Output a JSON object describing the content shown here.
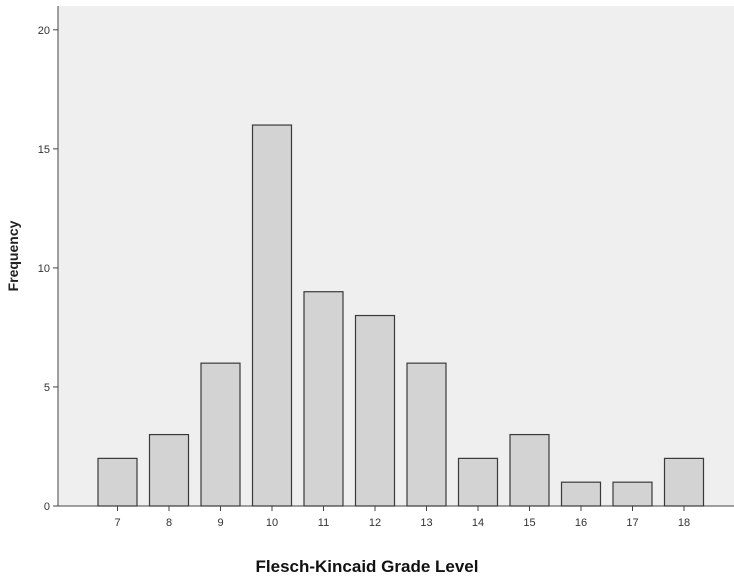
{
  "chart_data": {
    "type": "bar",
    "categories": [
      "7",
      "8",
      "9",
      "10",
      "11",
      "12",
      "13",
      "14",
      "15",
      "16",
      "17",
      "18"
    ],
    "values": [
      2,
      3,
      6,
      16,
      9,
      8,
      6,
      2,
      3,
      1,
      1,
      2
    ],
    "xlabel": "Flesch-Kincaid Grade Level",
    "ylabel": "Frequency",
    "ylim": [
      0,
      21
    ],
    "yticks": [
      0,
      5,
      10,
      15,
      20
    ],
    "grid": false,
    "colors": {
      "plot_background": "#efefef",
      "bar_fill": "#d3d3d3",
      "bar_stroke": "#3a3a3a",
      "axis": "#444444"
    }
  }
}
